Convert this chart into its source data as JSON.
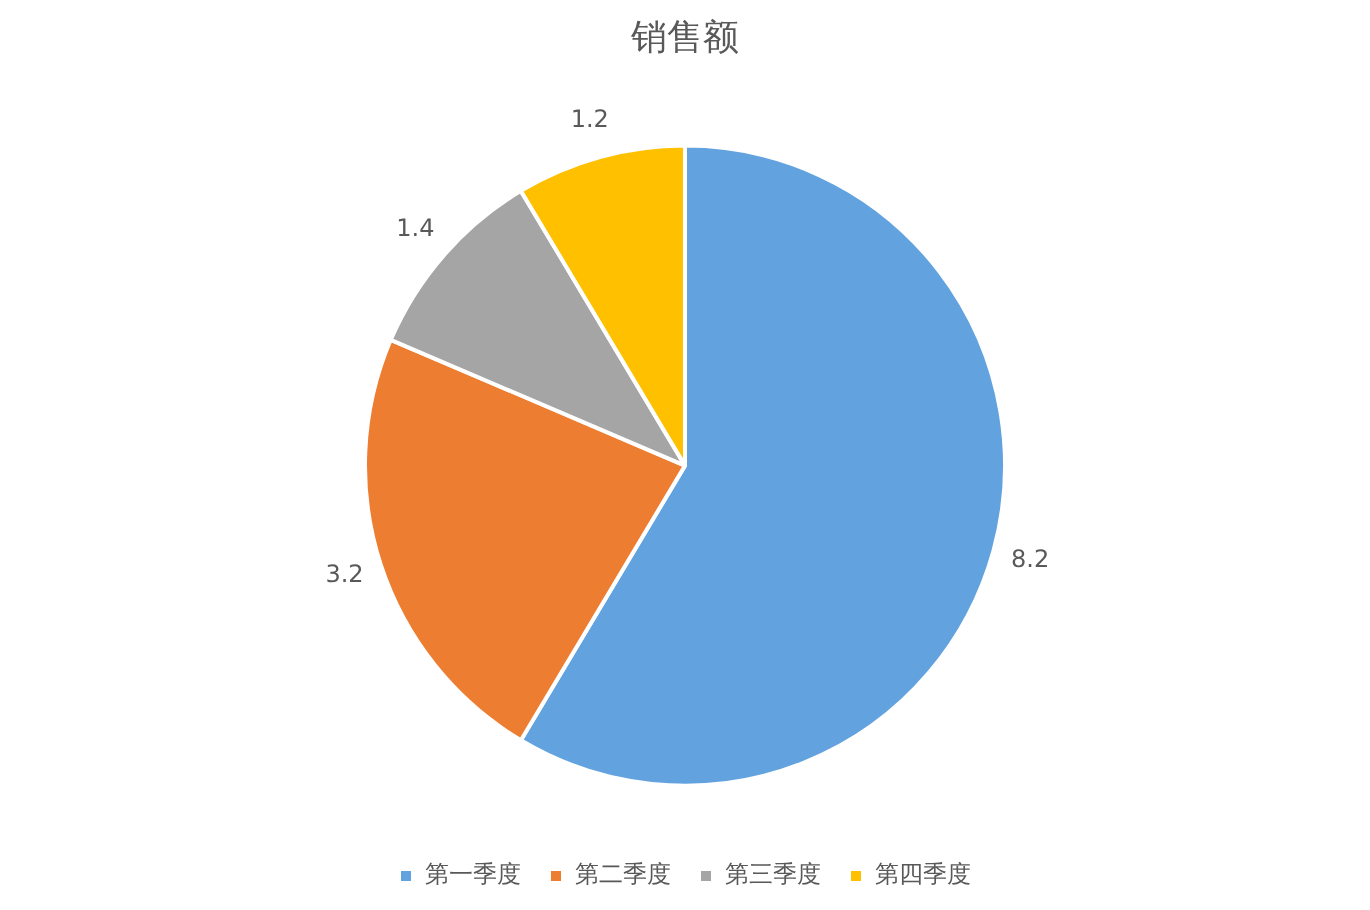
{
  "chart_data": {
    "type": "pie",
    "title": "销售额",
    "categories": [
      "第一季度",
      "第二季度",
      "第三季度",
      "第四季度"
    ],
    "values": [
      8.2,
      3.2,
      1.4,
      1.2
    ],
    "colors": [
      "#62a3df",
      "#ed7d31",
      "#a5a5a5",
      "#ffc000"
    ],
    "data_labels": true,
    "legend": "bottom"
  }
}
